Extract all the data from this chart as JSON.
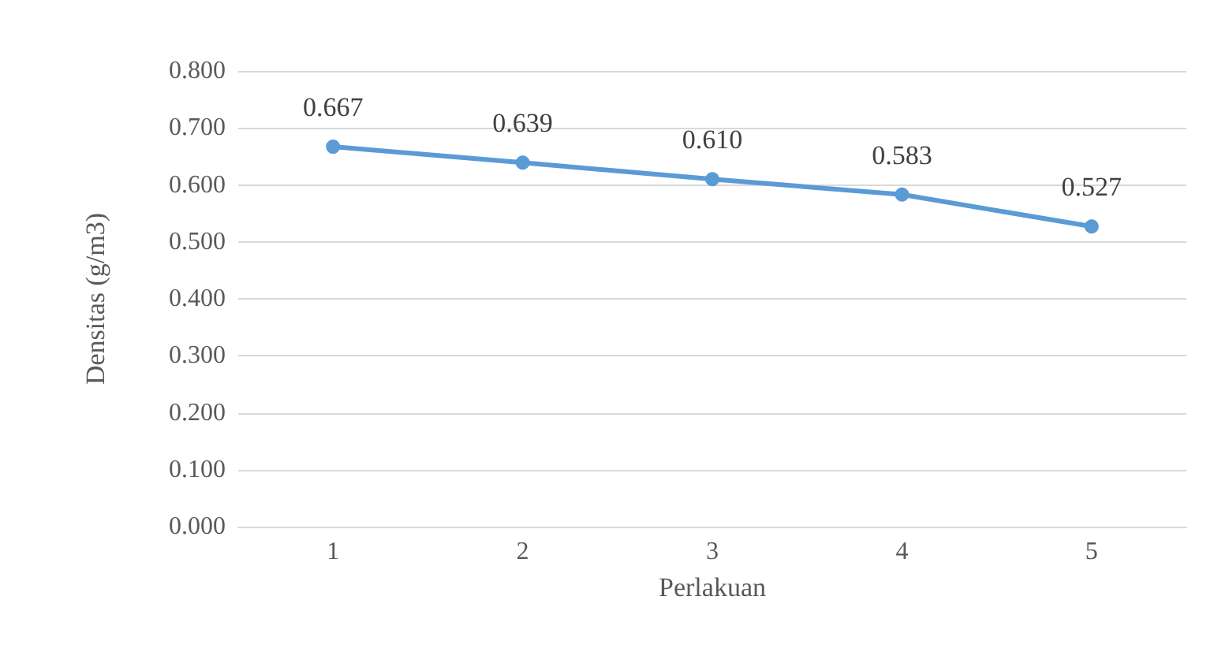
{
  "chart_data": {
    "type": "line",
    "xlabel": "Perlakuan",
    "ylabel": "Densitas (g/m3)",
    "categories": [
      "1",
      "2",
      "3",
      "4",
      "5"
    ],
    "series": [
      {
        "color": "#5b9bd5",
        "values": [
          0.667,
          0.639,
          0.61,
          0.583,
          0.527
        ],
        "value_labels": [
          "0.667",
          "0.639",
          "0.610",
          "0.583",
          "0.527"
        ]
      }
    ],
    "ylim": [
      0,
      0.8
    ],
    "yticks": [
      {
        "value": 0,
        "label": "0.000"
      },
      {
        "value": 0.1,
        "label": "0.100"
      },
      {
        "value": 0.2,
        "label": "0.200"
      },
      {
        "value": 0.3,
        "label": "0.300"
      },
      {
        "value": 0.4,
        "label": "0.400"
      },
      {
        "value": 0.5,
        "label": "0.500"
      },
      {
        "value": 0.6,
        "label": "0.600"
      },
      {
        "value": 0.7,
        "label": "0.700"
      },
      {
        "value": 0.8,
        "label": "0.800"
      }
    ],
    "grid": "y",
    "marker": "circle",
    "line_style": "solid"
  }
}
